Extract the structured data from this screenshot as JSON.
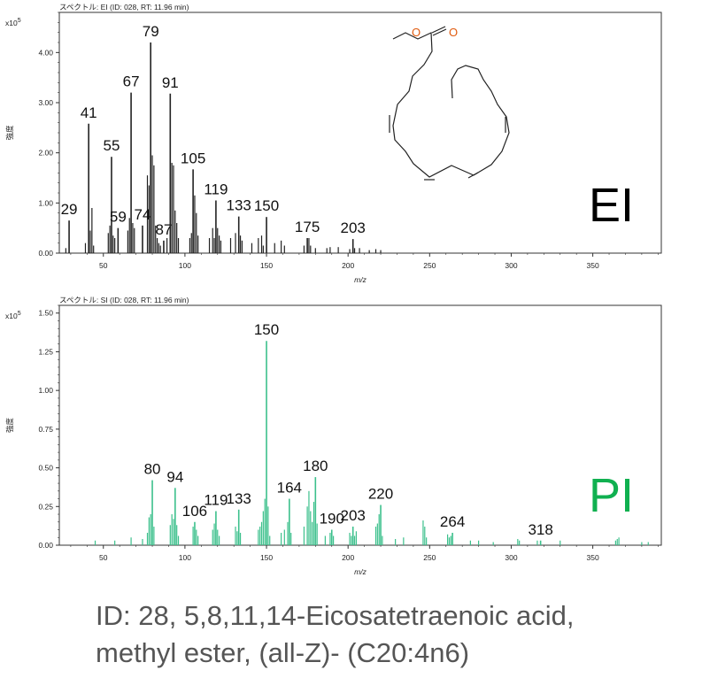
{
  "caption": {
    "line1": "ID: 28, 5,8,11,14-Eicosatetraenoic acid,",
    "line2": "methyl ester, (all-Z)- (C20:4n6)"
  },
  "chart_data": [
    {
      "type": "bar",
      "title": "スペクトル: EI (ID: 028, RT: 11.96 min)",
      "xlabel": "m/z",
      "ylabel": "強度",
      "yscale_label": "x10",
      "yscale_exp": "5",
      "xlim": [
        23,
        392
      ],
      "ylim": [
        0,
        4.8
      ],
      "xticks": [
        50,
        100,
        150,
        200,
        250,
        300,
        350
      ],
      "yticks": [
        0,
        1,
        2,
        3,
        4
      ],
      "ytick_labels": [
        "0.00",
        "1.00",
        "2.00",
        "3.00",
        "4.00"
      ],
      "method_label": "EI",
      "method_color": "#000000",
      "bar_color": "#222222",
      "peaks": [
        {
          "mz": 29,
          "y": 0.65,
          "label": "29"
        },
        {
          "mz": 41,
          "y": 2.58,
          "label": "41"
        },
        {
          "mz": 55,
          "y": 1.92,
          "label": "55"
        },
        {
          "mz": 59,
          "y": 0.5,
          "label": "59"
        },
        {
          "mz": 67,
          "y": 3.2,
          "label": "67"
        },
        {
          "mz": 74,
          "y": 0.55,
          "label": "74"
        },
        {
          "mz": 79,
          "y": 4.2,
          "label": "79"
        },
        {
          "mz": 87,
          "y": 0.25,
          "label": "87"
        },
        {
          "mz": 91,
          "y": 3.18,
          "label": "91"
        },
        {
          "mz": 105,
          "y": 1.67,
          "label": "105"
        },
        {
          "mz": 119,
          "y": 1.05,
          "label": "119"
        },
        {
          "mz": 133,
          "y": 0.73,
          "label": "133"
        },
        {
          "mz": 150,
          "y": 0.72,
          "label": "150"
        },
        {
          "mz": 175,
          "y": 0.3,
          "label": "175"
        },
        {
          "mz": 203,
          "y": 0.28,
          "label": "203"
        }
      ],
      "minor_peaks": [
        [
          27,
          0.1
        ],
        [
          39,
          0.2
        ],
        [
          42,
          0.45
        ],
        [
          43,
          0.9
        ],
        [
          44,
          0.15
        ],
        [
          53,
          0.4
        ],
        [
          54,
          0.55
        ],
        [
          56,
          0.35
        ],
        [
          57,
          0.3
        ],
        [
          65,
          0.45
        ],
        [
          66,
          0.7
        ],
        [
          68,
          0.6
        ],
        [
          69,
          0.5
        ],
        [
          77,
          1.55
        ],
        [
          78,
          1.35
        ],
        [
          80,
          1.95
        ],
        [
          81,
          1.75
        ],
        [
          82,
          0.55
        ],
        [
          83,
          0.3
        ],
        [
          84,
          0.2
        ],
        [
          85,
          0.15
        ],
        [
          89,
          0.3
        ],
        [
          92,
          1.8
        ],
        [
          93,
          1.75
        ],
        [
          94,
          0.85
        ],
        [
          95,
          0.6
        ],
        [
          96,
          0.3
        ],
        [
          103,
          0.3
        ],
        [
          104,
          0.4
        ],
        [
          106,
          1.15
        ],
        [
          107,
          0.8
        ],
        [
          108,
          0.35
        ],
        [
          115,
          0.3
        ],
        [
          117,
          0.5
        ],
        [
          118,
          0.3
        ],
        [
          120,
          0.5
        ],
        [
          121,
          0.35
        ],
        [
          122,
          0.25
        ],
        [
          128,
          0.3
        ],
        [
          131,
          0.4
        ],
        [
          134,
          0.35
        ],
        [
          135,
          0.25
        ],
        [
          141,
          0.2
        ],
        [
          145,
          0.3
        ],
        [
          147,
          0.35
        ],
        [
          148,
          0.15
        ],
        [
          155,
          0.2
        ],
        [
          159,
          0.25
        ],
        [
          161,
          0.15
        ],
        [
          173,
          0.15
        ],
        [
          176,
          0.3
        ],
        [
          177,
          0.15
        ],
        [
          180,
          0.1
        ],
        [
          187,
          0.1
        ],
        [
          189,
          0.12
        ],
        [
          194,
          0.12
        ],
        [
          201,
          0.08
        ],
        [
          204,
          0.1
        ],
        [
          207,
          0.1
        ],
        [
          213,
          0.06
        ],
        [
          217,
          0.08
        ],
        [
          220,
          0.06
        ]
      ]
    },
    {
      "type": "bar",
      "title": "スペクトル: SI (ID: 028, RT: 11.96 min)",
      "xlabel": "m/z",
      "ylabel": "強度",
      "yscale_label": "x10",
      "yscale_exp": "5",
      "xlim": [
        23,
        392
      ],
      "ylim": [
        0,
        1.55
      ],
      "xticks": [
        50,
        100,
        150,
        200,
        250,
        300,
        350
      ],
      "yticks": [
        0,
        0.25,
        0.5,
        0.75,
        1,
        1.25,
        1.5
      ],
      "ytick_labels": [
        "0.00",
        "0.25",
        "0.50",
        "0.75",
        "1.00",
        "1.25",
        "1.50"
      ],
      "method_label": "PI",
      "method_color": "#10b050",
      "bar_color": "#3cc08c",
      "peaks": [
        {
          "mz": 80,
          "y": 0.42,
          "label": "80"
        },
        {
          "mz": 94,
          "y": 0.37,
          "label": "94"
        },
        {
          "mz": 106,
          "y": 0.15,
          "label": "106"
        },
        {
          "mz": 119,
          "y": 0.22,
          "label": "119"
        },
        {
          "mz": 133,
          "y": 0.23,
          "label": "133"
        },
        {
          "mz": 150,
          "y": 1.32,
          "label": "150"
        },
        {
          "mz": 164,
          "y": 0.3,
          "label": "164"
        },
        {
          "mz": 180,
          "y": 0.44,
          "label": "180"
        },
        {
          "mz": 190,
          "y": 0.1,
          "label": "190"
        },
        {
          "mz": 203,
          "y": 0.12,
          "label": "203"
        },
        {
          "mz": 220,
          "y": 0.26,
          "label": "220"
        },
        {
          "mz": 264,
          "y": 0.08,
          "label": "264"
        },
        {
          "mz": 318,
          "y": 0.03,
          "label": "318"
        }
      ],
      "minor_peaks": [
        [
          45,
          0.03
        ],
        [
          57,
          0.03
        ],
        [
          67,
          0.05
        ],
        [
          74,
          0.04
        ],
        [
          77,
          0.08
        ],
        [
          78,
          0.18
        ],
        [
          79,
          0.2
        ],
        [
          81,
          0.12
        ],
        [
          91,
          0.13
        ],
        [
          92,
          0.2
        ],
        [
          93,
          0.17
        ],
        [
          95,
          0.13
        ],
        [
          96,
          0.06
        ],
        [
          105,
          0.12
        ],
        [
          107,
          0.1
        ],
        [
          108,
          0.06
        ],
        [
          117,
          0.1
        ],
        [
          118,
          0.14
        ],
        [
          120,
          0.1
        ],
        [
          121,
          0.06
        ],
        [
          131,
          0.12
        ],
        [
          132,
          0.09
        ],
        [
          134,
          0.08
        ],
        [
          145,
          0.1
        ],
        [
          146,
          0.12
        ],
        [
          147,
          0.15
        ],
        [
          148,
          0.22
        ],
        [
          149,
          0.3
        ],
        [
          151,
          0.25
        ],
        [
          152,
          0.06
        ],
        [
          159,
          0.08
        ],
        [
          161,
          0.1
        ],
        [
          163,
          0.15
        ],
        [
          165,
          0.08
        ],
        [
          173,
          0.12
        ],
        [
          175,
          0.25
        ],
        [
          176,
          0.35
        ],
        [
          177,
          0.22
        ],
        [
          178,
          0.15
        ],
        [
          179,
          0.28
        ],
        [
          181,
          0.14
        ],
        [
          186,
          0.06
        ],
        [
          189,
          0.08
        ],
        [
          191,
          0.06
        ],
        [
          201,
          0.08
        ],
        [
          202,
          0.06
        ],
        [
          204,
          0.06
        ],
        [
          205,
          0.09
        ],
        [
          217,
          0.12
        ],
        [
          218,
          0.14
        ],
        [
          219,
          0.2
        ],
        [
          221,
          0.06
        ],
        [
          229,
          0.04
        ],
        [
          234,
          0.05
        ],
        [
          246,
          0.16
        ],
        [
          247,
          0.12
        ],
        [
          248,
          0.05
        ],
        [
          261,
          0.07
        ],
        [
          262,
          0.05
        ],
        [
          263,
          0.06
        ],
        [
          275,
          0.03
        ],
        [
          280,
          0.03
        ],
        [
          289,
          0.02
        ],
        [
          304,
          0.04
        ],
        [
          305,
          0.03
        ],
        [
          316,
          0.03
        ],
        [
          330,
          0.03
        ],
        [
          364,
          0.03
        ],
        [
          365,
          0.04
        ],
        [
          366,
          0.05
        ],
        [
          380,
          0.02
        ],
        [
          384,
          0.02
        ]
      ]
    }
  ]
}
